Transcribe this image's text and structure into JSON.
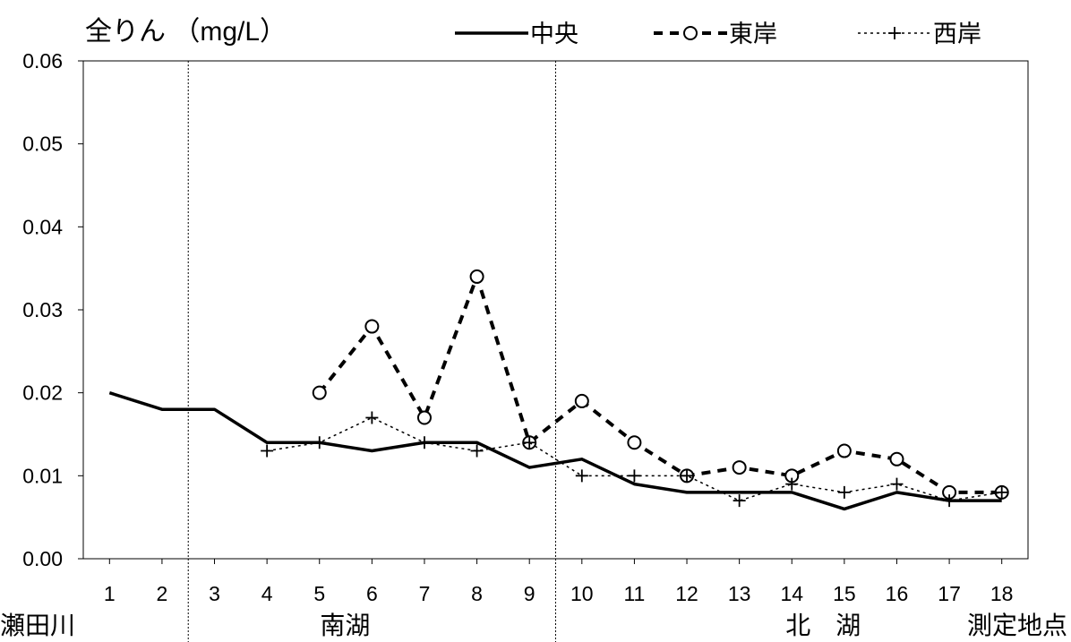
{
  "chart_data": {
    "type": "line",
    "title": "全りん （mg/L）",
    "xlabel": "測定地点",
    "categories": [
      "1",
      "2",
      "3",
      "4",
      "5",
      "6",
      "7",
      "8",
      "9",
      "10",
      "11",
      "12",
      "13",
      "14",
      "15",
      "16",
      "17",
      "18"
    ],
    "ylim": [
      0,
      0.06
    ],
    "yticks": [
      "0.00",
      "0.01",
      "0.02",
      "0.03",
      "0.04",
      "0.05",
      "0.06"
    ],
    "grid": false,
    "legend_position": "top",
    "regions": [
      {
        "label": "瀬田川",
        "from": 1,
        "to": 2
      },
      {
        "label": "南湖",
        "from": 3,
        "to": 9
      },
      {
        "label": "北　湖",
        "from": 10,
        "to": 18
      }
    ],
    "series": [
      {
        "name": "中央",
        "style": "solid",
        "marker": "none",
        "values": [
          0.02,
          0.018,
          0.018,
          0.014,
          0.014,
          0.013,
          0.014,
          0.014,
          0.011,
          0.012,
          0.009,
          0.008,
          0.008,
          0.008,
          0.006,
          0.008,
          0.007,
          0.007
        ]
      },
      {
        "name": "東岸",
        "style": "dashed",
        "marker": "circle",
        "values": [
          null,
          null,
          null,
          null,
          0.02,
          0.028,
          0.017,
          0.034,
          0.014,
          0.019,
          0.014,
          0.01,
          0.011,
          0.01,
          0.013,
          0.012,
          0.008,
          0.008
        ]
      },
      {
        "name": "西岸",
        "style": "dotted",
        "marker": "plus",
        "values": [
          null,
          null,
          null,
          0.013,
          0.014,
          0.017,
          0.014,
          0.013,
          0.014,
          0.01,
          0.01,
          0.01,
          0.007,
          0.009,
          0.008,
          0.009,
          0.007,
          0.008
        ]
      }
    ],
    "colors": {
      "line": "#000000",
      "background": "#ffffff"
    }
  }
}
